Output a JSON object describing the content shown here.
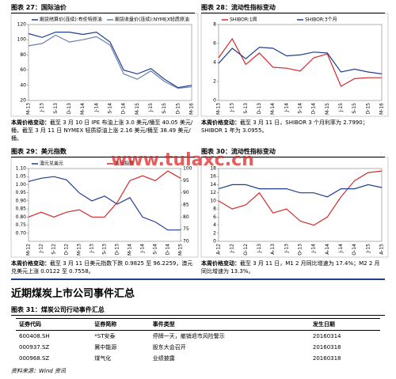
{
  "figures": [
    {
      "title": "图表 27：国际油价",
      "note_label": "本周价格变动：",
      "note": "截至 3 月 10 日 IPE 布油上涨 3.0 美元/桶至 40.05 美元/桶，截至 3 月 11 日 NYMEX 轻质原油上涨 2.16 美元/桶至 38.49 美元/桶。",
      "chart_data": {
        "type": "line",
        "categories": [
          "M-13",
          "J-13",
          "S-13",
          "D-13",
          "M-14",
          "J-14",
          "S-14",
          "D-14",
          "M-15",
          "J-15",
          "S-15",
          "D-15",
          "M-16"
        ],
        "ylim": [
          20,
          120
        ],
        "yticks": [
          20,
          40,
          60,
          80,
          100,
          120
        ],
        "series": [
          {
            "name": "期货结算价(连续):布伦特原油",
            "color": "#1f3f8f",
            "values": [
              108,
              103,
              110,
              110,
              107,
              110,
              97,
              60,
              55,
              62,
              48,
              37,
              40
            ]
          },
          {
            "name": "期货收盘价(连续):NYMEX轻质原油",
            "color": "#6a7fb0",
            "values": [
              92,
              95,
              106,
              97,
              100,
              104,
              93,
              55,
              48,
              59,
              45,
              36,
              38
            ]
          }
        ]
      }
    },
    {
      "title": "图表 28：流动性指标变动",
      "note_label": "本周价格变动：",
      "note": "截至 3 月 11 日，SHIBOR 3 个月利率为 2.7990；SHIBOR 1 年为 3.0955。",
      "chart_data": {
        "type": "line",
        "categories": [
          "M-13",
          "J-13",
          "S-13",
          "D-13",
          "M-14",
          "J-14",
          "S-14",
          "D-14",
          "M-15",
          "J-15",
          "S-15",
          "D-15",
          "M-16"
        ],
        "ylim": [
          0,
          8
        ],
        "yticks": [
          0,
          2,
          4,
          6,
          8
        ],
        "series": [
          {
            "name": "SHIBOR:1周",
            "color": "#d42a2a",
            "values": [
              4.5,
              6.5,
              3.8,
              5,
              3.5,
              3.4,
              3.1,
              4.5,
              4.9,
              1.5,
              2.3,
              2.4,
              2.4
            ]
          },
          {
            "name": "SHIBOR:3个月",
            "color": "#1f3f8f",
            "values": [
              3.9,
              5.5,
              4.4,
              5.6,
              5.5,
              4.7,
              4.8,
              5.1,
              5.0,
              3.0,
              3.3,
              3.0,
              2.8
            ]
          }
        ]
      }
    },
    {
      "title": "图表 29：美元指数",
      "note_label": "本周价格变动：",
      "note": "截至 3 月 11 日美元指数下跌 0.9825 至 96.2259，澳元兑美元上涨 0.0122 至 0.7558。",
      "chart_data": {
        "type": "line",
        "categories": [
          "M-12",
          "J-12",
          "S-12",
          "D-12",
          "M-13",
          "J-13",
          "S-13",
          "D-13",
          "M-14",
          "J-14",
          "S-14",
          "D-14",
          "M-15"
        ],
        "ylim": [
          0.65,
          1.1
        ],
        "yticks": [
          {
            "value": 0.7,
            "label": "0.70"
          },
          0.75,
          {
            "value": 0.8,
            "label": "0.80"
          },
          0.85,
          {
            "value": 0.9,
            "label": "0.90"
          },
          0.95,
          {
            "value": 1,
            "label": "1.00"
          },
          1.05,
          {
            "value": 1.1,
            "label": "1.10"
          }
        ],
        "y2lim": [
          70,
          100
        ],
        "y2ticks": [
          70,
          75,
          80,
          85,
          90,
          95,
          100
        ],
        "series": [
          {
            "name": "澳元兑美元",
            "color": "#1f3f8f",
            "values": [
              1.02,
              1.04,
              1.05,
              1.03,
              0.95,
              0.9,
              0.93,
              0.88,
              0.92,
              0.8,
              0.77,
              0.72,
              0.72
            ]
          },
          {
            "name": "美元指数",
            "color": "#d42a2a",
            "axis": "y2",
            "values": [
              80,
              82,
              80,
              82,
              83,
              80,
              80,
              86,
              95,
              97,
              95,
              99,
              96
            ]
          }
        ]
      }
    },
    {
      "title": "图表 30：流动性指标变动",
      "note_label": "本周价格变动：",
      "note": "截至 3 月 11 日，M1 2 月同比增速为 17.4%；M2 2 月同比增速为 13.3%。",
      "chart_data": {
        "type": "line",
        "categories": [
          "A-12",
          "J-12",
          "O-12",
          "J-13",
          "A-13",
          "J-13",
          "O-13",
          "J-14",
          "A-14",
          "J-14",
          "O-14",
          "J-15",
          "A-15"
        ],
        "ylim": [
          0,
          18
        ],
        "yticks": [
          0,
          2,
          4,
          6,
          8,
          10,
          12,
          14,
          16,
          18
        ],
        "series": [
          {
            "color": "#d42a2a",
            "values": [
              10,
              8,
              9,
              12,
              7,
              8,
              5,
              4,
              6,
              11,
              15,
              17,
              17.4
            ]
          },
          {
            "color": "#1f3f8f",
            "values": [
              13,
              14,
              14,
              13,
              13,
              13,
              12,
              12,
              11,
              13,
              13,
              14,
              13.3
            ]
          }
        ]
      }
    }
  ],
  "watermark": "www.tulaxc.cn",
  "section_title": "近期煤炭上市公司事件汇总",
  "table": {
    "title": "图表 31：煤炭公司行动事件汇总",
    "header": [
      "证券代码",
      "证券简称",
      "事件类型",
      "发生日期"
    ],
    "rows": [
      [
        "600408.SH",
        "*ST安泰",
        "停牌一天，撤销退市风险警示",
        "20160314"
      ],
      [
        "000937.SZ",
        "冀中能源",
        "股东大会召开",
        "20160318"
      ],
      [
        "000968.SZ",
        "煤气化",
        "业绩披露",
        "20160318"
      ]
    ]
  },
  "source": "资料来源：Wind 资讯"
}
